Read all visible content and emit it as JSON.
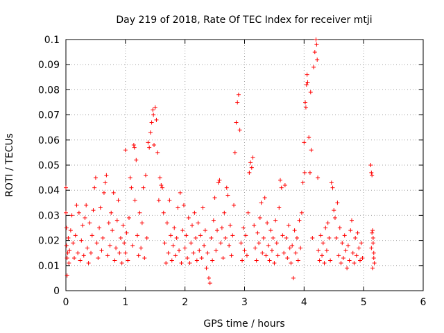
{
  "chart_data": {
    "type": "scatter",
    "title": "Day 219 of 2018, Rate Of TEC Index for receiver mtji",
    "xlabel": "GPS time / hours",
    "ylabel": "ROTI / TECUs",
    "xlim": [
      0,
      6
    ],
    "ylim": [
      0,
      0.1
    ],
    "x_ticks": [
      0,
      1,
      2,
      3,
      4,
      5,
      6
    ],
    "y_ticks": [
      0,
      0.01,
      0.02,
      0.03,
      0.04,
      0.05,
      0.06,
      0.07,
      0.08,
      0.09,
      0.1
    ],
    "grid": true,
    "marker": "+",
    "color": "#ff0000",
    "series": [
      {
        "name": "ROTI",
        "points": [
          [
            0.0,
            0.041
          ],
          [
            0.0,
            0.031
          ],
          [
            0.01,
            0.025
          ],
          [
            0.01,
            0.018
          ],
          [
            0.02,
            0.013
          ],
          [
            0.02,
            0.006
          ],
          [
            0.03,
            0.015
          ],
          [
            0.04,
            0.021
          ],
          [
            0.05,
            0.011
          ],
          [
            0.06,
            0.016
          ],
          [
            0.08,
            0.024
          ],
          [
            0.1,
            0.03
          ],
          [
            0.12,
            0.019
          ],
          [
            0.14,
            0.013
          ],
          [
            0.16,
            0.022
          ],
          [
            0.18,
            0.034
          ],
          [
            0.2,
            0.015
          ],
          [
            0.22,
            0.031
          ],
          [
            0.24,
            0.012
          ],
          [
            0.26,
            0.02
          ],
          [
            0.28,
            0.026
          ],
          [
            0.3,
            0.014
          ],
          [
            0.32,
            0.029
          ],
          [
            0.34,
            0.034
          ],
          [
            0.36,
            0.017
          ],
          [
            0.38,
            0.011
          ],
          [
            0.4,
            0.027
          ],
          [
            0.42,
            0.015
          ],
          [
            0.44,
            0.022
          ],
          [
            0.46,
            0.032
          ],
          [
            0.48,
            0.041
          ],
          [
            0.5,
            0.045
          ],
          [
            0.52,
            0.019
          ],
          [
            0.54,
            0.013
          ],
          [
            0.56,
            0.025
          ],
          [
            0.58,
            0.033
          ],
          [
            0.6,
            0.016
          ],
          [
            0.62,
            0.021
          ],
          [
            0.64,
            0.039
          ],
          [
            0.66,
            0.043
          ],
          [
            0.68,
            0.046
          ],
          [
            0.7,
            0.014
          ],
          [
            0.72,
            0.027
          ],
          [
            0.74,
            0.018
          ],
          [
            0.76,
            0.031
          ],
          [
            0.78,
            0.024
          ],
          [
            0.8,
            0.039
          ],
          [
            0.82,
            0.012
          ],
          [
            0.84,
            0.017
          ],
          [
            0.86,
            0.028
          ],
          [
            0.88,
            0.036
          ],
          [
            0.9,
            0.015
          ],
          [
            0.92,
            0.021
          ],
          [
            0.94,
            0.011
          ],
          [
            0.96,
            0.026
          ],
          [
            0.98,
            0.019
          ],
          [
            1.0,
            0.056
          ],
          [
            1.0,
            0.015
          ],
          [
            1.02,
            0.023
          ],
          [
            1.04,
            0.012
          ],
          [
            1.06,
            0.029
          ],
          [
            1.08,
            0.045
          ],
          [
            1.1,
            0.041
          ],
          [
            1.12,
            0.018
          ],
          [
            1.14,
            0.058
          ],
          [
            1.15,
            0.057
          ],
          [
            1.16,
            0.036
          ],
          [
            1.18,
            0.052
          ],
          [
            1.2,
            0.022
          ],
          [
            1.22,
            0.014
          ],
          [
            1.24,
            0.031
          ],
          [
            1.26,
            0.017
          ],
          [
            1.28,
            0.027
          ],
          [
            1.3,
            0.041
          ],
          [
            1.32,
            0.013
          ],
          [
            1.34,
            0.046
          ],
          [
            1.36,
            0.021
          ],
          [
            1.38,
            0.059
          ],
          [
            1.4,
            0.057
          ],
          [
            1.42,
            0.063
          ],
          [
            1.44,
            0.067
          ],
          [
            1.46,
            0.072
          ],
          [
            1.47,
            0.07
          ],
          [
            1.48,
            0.058
          ],
          [
            1.5,
            0.073
          ],
          [
            1.52,
            0.068
          ],
          [
            1.54,
            0.055
          ],
          [
            1.56,
            0.036
          ],
          [
            1.58,
            0.045
          ],
          [
            1.6,
            0.042
          ],
          [
            1.62,
            0.041
          ],
          [
            1.64,
            0.031
          ],
          [
            1.66,
            0.019
          ],
          [
            1.68,
            0.011
          ],
          [
            1.7,
            0.027
          ],
          [
            1.72,
            0.015
          ],
          [
            1.74,
            0.036
          ],
          [
            1.76,
            0.022
          ],
          [
            1.78,
            0.012
          ],
          [
            1.8,
            0.018
          ],
          [
            1.82,
            0.025
          ],
          [
            1.84,
            0.014
          ],
          [
            1.86,
            0.021
          ],
          [
            1.88,
            0.033
          ],
          [
            1.9,
            0.016
          ],
          [
            1.92,
            0.039
          ],
          [
            1.94,
            0.011
          ],
          [
            1.96,
            0.024
          ],
          [
            1.98,
            0.034
          ],
          [
            2.0,
            0.017
          ],
          [
            2.02,
            0.022
          ],
          [
            2.04,
            0.013
          ],
          [
            2.06,
            0.029
          ],
          [
            2.08,
            0.011
          ],
          [
            2.1,
            0.019
          ],
          [
            2.12,
            0.026
          ],
          [
            2.14,
            0.015
          ],
          [
            2.16,
            0.031
          ],
          [
            2.18,
            0.021
          ],
          [
            2.2,
            0.012
          ],
          [
            2.22,
            0.027
          ],
          [
            2.24,
            0.016
          ],
          [
            2.26,
            0.022
          ],
          [
            2.28,
            0.013
          ],
          [
            2.3,
            0.033
          ],
          [
            2.32,
            0.018
          ],
          [
            2.34,
            0.024
          ],
          [
            2.36,
            0.009
          ],
          [
            2.38,
            0.015
          ],
          [
            2.4,
            0.005
          ],
          [
            2.42,
            0.003
          ],
          [
            2.44,
            0.021
          ],
          [
            2.46,
            0.012
          ],
          [
            2.48,
            0.028
          ],
          [
            2.5,
            0.037
          ],
          [
            2.52,
            0.016
          ],
          [
            2.54,
            0.024
          ],
          [
            2.56,
            0.043
          ],
          [
            2.58,
            0.044
          ],
          [
            2.6,
            0.019
          ],
          [
            2.62,
            0.025
          ],
          [
            2.64,
            0.013
          ],
          [
            2.66,
            0.031
          ],
          [
            2.68,
            0.021
          ],
          [
            2.7,
            0.041
          ],
          [
            2.72,
            0.038
          ],
          [
            2.74,
            0.018
          ],
          [
            2.76,
            0.026
          ],
          [
            2.78,
            0.014
          ],
          [
            2.8,
            0.022
          ],
          [
            2.82,
            0.034
          ],
          [
            2.84,
            0.055
          ],
          [
            2.86,
            0.067
          ],
          [
            2.88,
            0.075
          ],
          [
            2.9,
            0.078
          ],
          [
            2.92,
            0.064
          ],
          [
            2.94,
            0.019
          ],
          [
            2.96,
            0.012
          ],
          [
            2.98,
            0.025
          ],
          [
            3.0,
            0.016
          ],
          [
            3.02,
            0.022
          ],
          [
            3.04,
            0.014
          ],
          [
            3.06,
            0.031
          ],
          [
            3.08,
            0.047
          ],
          [
            3.1,
            0.051
          ],
          [
            3.12,
            0.049
          ],
          [
            3.14,
            0.053
          ],
          [
            3.16,
            0.026
          ],
          [
            3.18,
            0.017
          ],
          [
            3.2,
            0.012
          ],
          [
            3.22,
            0.023
          ],
          [
            3.24,
            0.019
          ],
          [
            3.26,
            0.029
          ],
          [
            3.28,
            0.035
          ],
          [
            3.3,
            0.015
          ],
          [
            3.32,
            0.021
          ],
          [
            3.34,
            0.037
          ],
          [
            3.36,
            0.014
          ],
          [
            3.38,
            0.027
          ],
          [
            3.4,
            0.018
          ],
          [
            3.42,
            0.012
          ],
          [
            3.44,
            0.024
          ],
          [
            3.46,
            0.016
          ],
          [
            3.48,
            0.021
          ],
          [
            3.5,
            0.011
          ],
          [
            3.52,
            0.028
          ],
          [
            3.54,
            0.019
          ],
          [
            3.56,
            0.014
          ],
          [
            3.58,
            0.033
          ],
          [
            3.6,
            0.044
          ],
          [
            3.62,
            0.041
          ],
          [
            3.64,
            0.022
          ],
          [
            3.66,
            0.015
          ],
          [
            3.68,
            0.042
          ],
          [
            3.7,
            0.021
          ],
          [
            3.72,
            0.013
          ],
          [
            3.74,
            0.026
          ],
          [
            3.76,
            0.017
          ],
          [
            3.78,
            0.011
          ],
          [
            3.8,
            0.018
          ],
          [
            3.82,
            0.005
          ],
          [
            3.84,
            0.024
          ],
          [
            3.86,
            0.015
          ],
          [
            3.88,
            0.021
          ],
          [
            3.9,
            0.012
          ],
          [
            3.92,
            0.028
          ],
          [
            3.94,
            0.017
          ],
          [
            3.96,
            0.031
          ],
          [
            3.98,
            0.043
          ],
          [
            4.0,
            0.059
          ],
          [
            4.01,
            0.047
          ],
          [
            4.02,
            0.075
          ],
          [
            4.03,
            0.073
          ],
          [
            4.04,
            0.082
          ],
          [
            4.05,
            0.086
          ],
          [
            4.06,
            0.083
          ],
          [
            4.08,
            0.061
          ],
          [
            4.1,
            0.047
          ],
          [
            4.11,
            0.079
          ],
          [
            4.12,
            0.056
          ],
          [
            4.14,
            0.021
          ],
          [
            4.16,
            0.089
          ],
          [
            4.18,
            0.095
          ],
          [
            4.2,
            0.1
          ],
          [
            4.21,
            0.098
          ],
          [
            4.22,
            0.092
          ],
          [
            4.23,
            0.045
          ],
          [
            4.24,
            0.016
          ],
          [
            4.26,
            0.012
          ],
          [
            4.28,
            0.022
          ],
          [
            4.3,
            0.014
          ],
          [
            4.32,
            0.019
          ],
          [
            4.34,
            0.011
          ],
          [
            4.36,
            0.025
          ],
          [
            4.38,
            0.016
          ],
          [
            4.4,
            0.027
          ],
          [
            4.42,
            0.021
          ],
          [
            4.44,
            0.012
          ],
          [
            4.46,
            0.043
          ],
          [
            4.48,
            0.041
          ],
          [
            4.5,
            0.032
          ],
          [
            4.52,
            0.029
          ],
          [
            4.54,
            0.021
          ],
          [
            4.56,
            0.035
          ],
          [
            4.58,
            0.014
          ],
          [
            4.6,
            0.025
          ],
          [
            4.62,
            0.011
          ],
          [
            4.64,
            0.019
          ],
          [
            4.66,
            0.013
          ],
          [
            4.68,
            0.022
          ],
          [
            4.7,
            0.016
          ],
          [
            4.72,
            0.009
          ],
          [
            4.74,
            0.018
          ],
          [
            4.76,
            0.012
          ],
          [
            4.78,
            0.024
          ],
          [
            4.8,
            0.028
          ],
          [
            4.82,
            0.015
          ],
          [
            4.84,
            0.011
          ],
          [
            4.86,
            0.021
          ],
          [
            4.88,
            0.014
          ],
          [
            4.9,
            0.023
          ],
          [
            4.92,
            0.017
          ],
          [
            4.94,
            0.012
          ],
          [
            4.96,
            0.019
          ],
          [
            4.98,
            0.013
          ],
          [
            5.12,
            0.05
          ],
          [
            5.13,
            0.047
          ],
          [
            5.14,
            0.046
          ],
          [
            5.15,
            0.024
          ],
          [
            5.16,
            0.019
          ],
          [
            5.17,
            0.015
          ],
          [
            5.18,
            0.011
          ],
          [
            5.15,
            0.009
          ],
          [
            5.16,
            0.021
          ],
          [
            5.17,
            0.013
          ],
          [
            5.13,
            0.017
          ],
          [
            5.14,
            0.023
          ]
        ]
      }
    ]
  }
}
